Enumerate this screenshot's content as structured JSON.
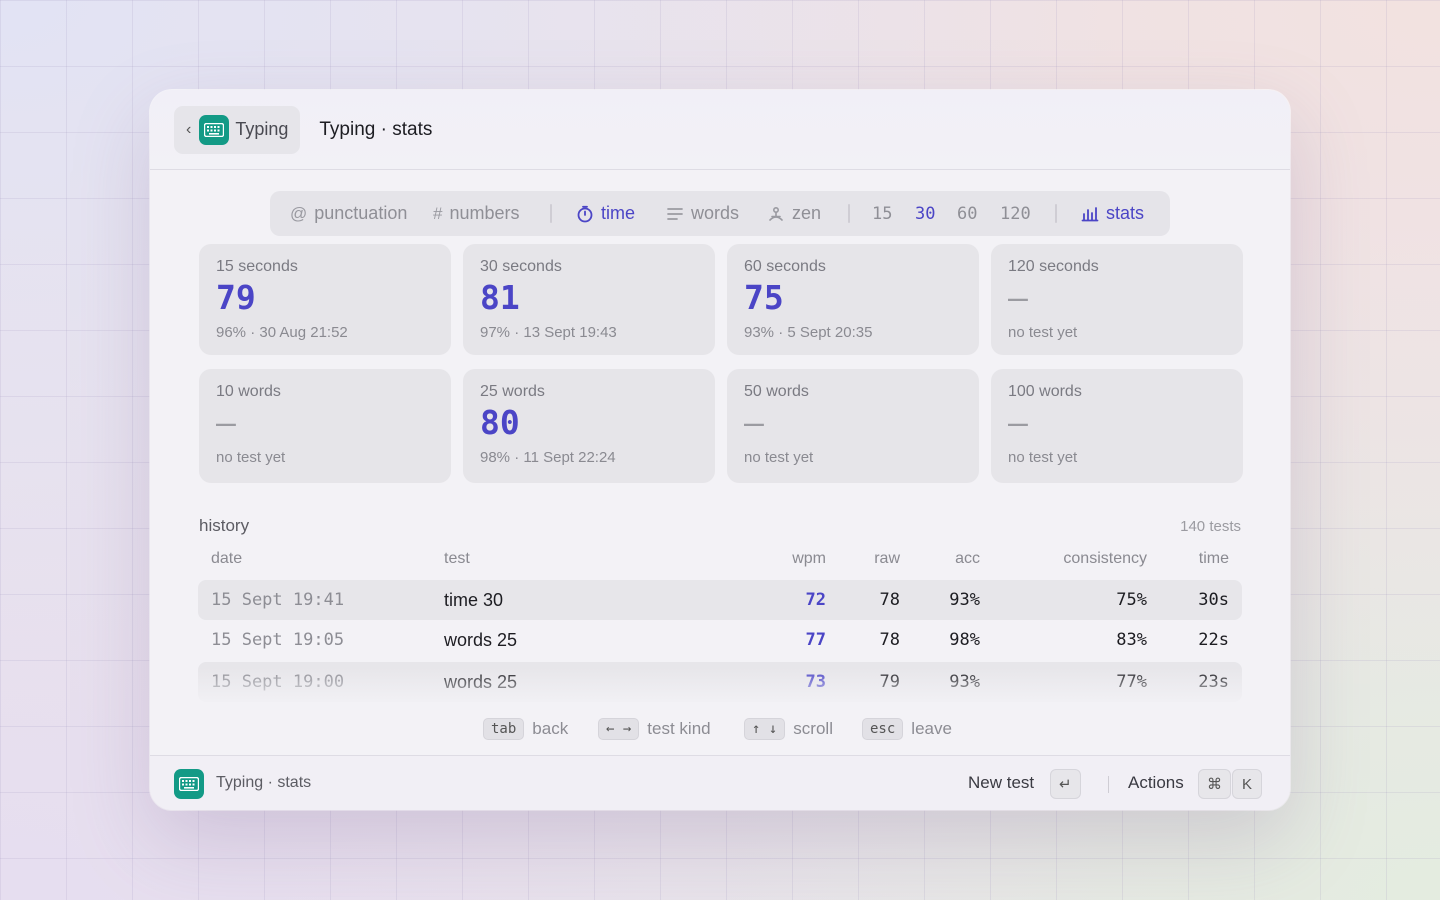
{
  "header": {
    "back_label": "Typing",
    "title": "Typing · stats"
  },
  "modebar": {
    "punctuation": "punctuation",
    "numbers": "numbers",
    "time": "time",
    "words": "words",
    "zen": "zen",
    "durations": [
      "15",
      "30",
      "60",
      "120"
    ],
    "selected_duration": "30",
    "stats": "stats",
    "active_mode": "time"
  },
  "cards": [
    {
      "label": "15 seconds",
      "value": "79",
      "detail": "96% · 30 Aug 21:52"
    },
    {
      "label": "30 seconds",
      "value": "81",
      "detail": "97% · 13 Sept 19:43"
    },
    {
      "label": "60 seconds",
      "value": "75",
      "detail": "93% · 5 Sept 20:35"
    },
    {
      "label": "120 seconds",
      "value": "—",
      "detail": "no test yet"
    },
    {
      "label": "10 words",
      "value": "—",
      "detail": "no test yet"
    },
    {
      "label": "25 words",
      "value": "80",
      "detail": "98% · 11 Sept 22:24"
    },
    {
      "label": "50 words",
      "value": "—",
      "detail": "no test yet"
    },
    {
      "label": "100 words",
      "value": "—",
      "detail": "no test yet"
    }
  ],
  "history": {
    "title": "history",
    "count": "140 tests",
    "columns": {
      "date": "date",
      "test": "test",
      "wpm": "wpm",
      "raw": "raw",
      "acc": "acc",
      "consistency": "consistency",
      "time": "time"
    },
    "rows": [
      {
        "date": "15 Sept 19:41",
        "test": "time 30",
        "wpm": "72",
        "raw": "78",
        "acc": "93%",
        "consistency": "75%",
        "time": "30s"
      },
      {
        "date": "15 Sept 19:05",
        "test": "words 25",
        "wpm": "77",
        "raw": "78",
        "acc": "98%",
        "consistency": "83%",
        "time": "22s"
      },
      {
        "date": "15 Sept 19:00",
        "test": "words 25",
        "wpm": "73",
        "raw": "79",
        "acc": "93%",
        "consistency": "77%",
        "time": "23s"
      }
    ]
  },
  "hints": [
    {
      "key": "tab",
      "label": "back"
    },
    {
      "key": "← →",
      "label": "test kind"
    },
    {
      "key": "↑ ↓",
      "label": "scroll"
    },
    {
      "key": "esc",
      "label": "leave"
    }
  ],
  "footer": {
    "title": "Typing · stats",
    "new_test": "New test",
    "enter_key": "↵",
    "actions": "Actions",
    "cmd_key": "⌘",
    "k_key": "K"
  },
  "colors": {
    "accent": "#4b45c6",
    "brand": "#139a86"
  }
}
